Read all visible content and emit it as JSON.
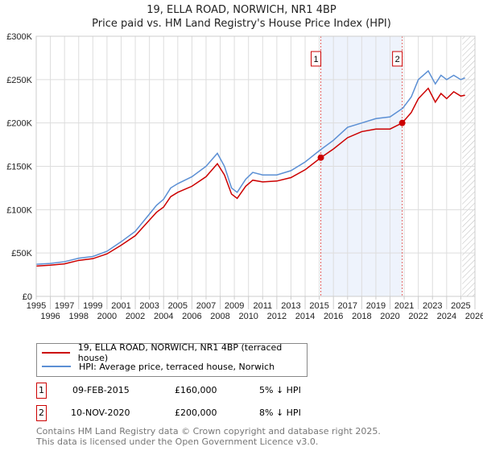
{
  "title": "19, ELLA ROAD, NORWICH, NR1 4BP",
  "subtitle": "Price paid vs. HM Land Registry's House Price Index (HPI)",
  "chart_data": {
    "type": "line",
    "ylim": [
      0,
      300000
    ],
    "xlim": [
      1995,
      2026
    ],
    "yticks": [
      "£0",
      "£50K",
      "£100K",
      "£150K",
      "£200K",
      "£250K",
      "£300K"
    ],
    "xticks": [
      "1995",
      "1996",
      "1997",
      "1998",
      "1999",
      "2000",
      "2001",
      "2002",
      "2003",
      "2004",
      "2005",
      "2006",
      "2007",
      "2008",
      "2009",
      "2010",
      "2011",
      "2012",
      "2013",
      "2014",
      "2015",
      "2016",
      "2017",
      "2018",
      "2019",
      "2020",
      "2021",
      "2022",
      "2023",
      "2024",
      "2025",
      "2026"
    ],
    "series": [
      {
        "name": "19, ELLA ROAD, NORWICH, NR1 4BP (terraced house)",
        "color": "#cc0000",
        "x": [
          1995,
          1996,
          1997,
          1998,
          1999,
          2000,
          2001,
          2002,
          2003,
          2003.5,
          2004,
          2004.5,
          2005,
          2006,
          2007,
          2007.8,
          2008.3,
          2008.8,
          2009.2,
          2009.8,
          2010.3,
          2011,
          2012,
          2013,
          2014,
          2015.11,
          2016,
          2017,
          2018,
          2019,
          2020,
          2020.86,
          2021.5,
          2022,
          2022.7,
          2023.2,
          2023.6,
          2024,
          2024.5,
          2025,
          2025.3
        ],
        "y": [
          35000,
          36000,
          37500,
          41500,
          43500,
          49000,
          59000,
          70000,
          88000,
          97000,
          103000,
          115000,
          120000,
          127000,
          138000,
          153000,
          140000,
          118000,
          113000,
          127000,
          134000,
          132000,
          133000,
          137000,
          146000,
          160000,
          170000,
          183000,
          190000,
          193000,
          193000,
          200000,
          212000,
          228000,
          240000,
          224000,
          234000,
          228000,
          236000,
          231000,
          232000
        ]
      },
      {
        "name": "HPI: Average price, terraced house, Norwich",
        "color": "#5b8fd4",
        "x": [
          1995,
          1996,
          1997,
          1998,
          1999,
          2000,
          2001,
          2002,
          2003,
          2003.5,
          2004,
          2004.5,
          2005,
          2006,
          2007,
          2007.8,
          2008.3,
          2008.8,
          2009.2,
          2009.8,
          2010.3,
          2011,
          2012,
          2013,
          2014,
          2015,
          2016,
          2017,
          2018,
          2019,
          2020,
          2020.9,
          2021.5,
          2022,
          2022.7,
          2023.2,
          2023.6,
          2024,
          2024.5,
          2025,
          2025.3
        ],
        "y": [
          37000,
          38000,
          40000,
          44000,
          46000,
          52000,
          63000,
          75000,
          95000,
          105000,
          112000,
          125000,
          130000,
          138000,
          150000,
          165000,
          150000,
          125000,
          120000,
          135000,
          143000,
          140000,
          140000,
          145000,
          155000,
          168000,
          180000,
          195000,
          200000,
          205000,
          207000,
          217000,
          230000,
          250000,
          260000,
          245000,
          255000,
          250000,
          255000,
          250000,
          252000
        ]
      }
    ],
    "sales": [
      {
        "label": "1",
        "x": 2015.11,
        "y": 160000
      },
      {
        "label": "2",
        "x": 2020.86,
        "y": 200000
      }
    ]
  },
  "legend": {
    "red": "19, ELLA ROAD, NORWICH, NR1 4BP (terraced house)",
    "blue": "HPI: Average price, terraced house, Norwich"
  },
  "transactions": [
    {
      "num": "1",
      "date": "09-FEB-2015",
      "price": "£160,000",
      "hpi": "5% ↓ HPI"
    },
    {
      "num": "2",
      "date": "10-NOV-2020",
      "price": "£200,000",
      "hpi": "8% ↓ HPI"
    }
  ],
  "footer": [
    "Contains HM Land Registry data © Crown copyright and database right 2025.",
    "This data is licensed under the Open Government Licence v3.0."
  ]
}
